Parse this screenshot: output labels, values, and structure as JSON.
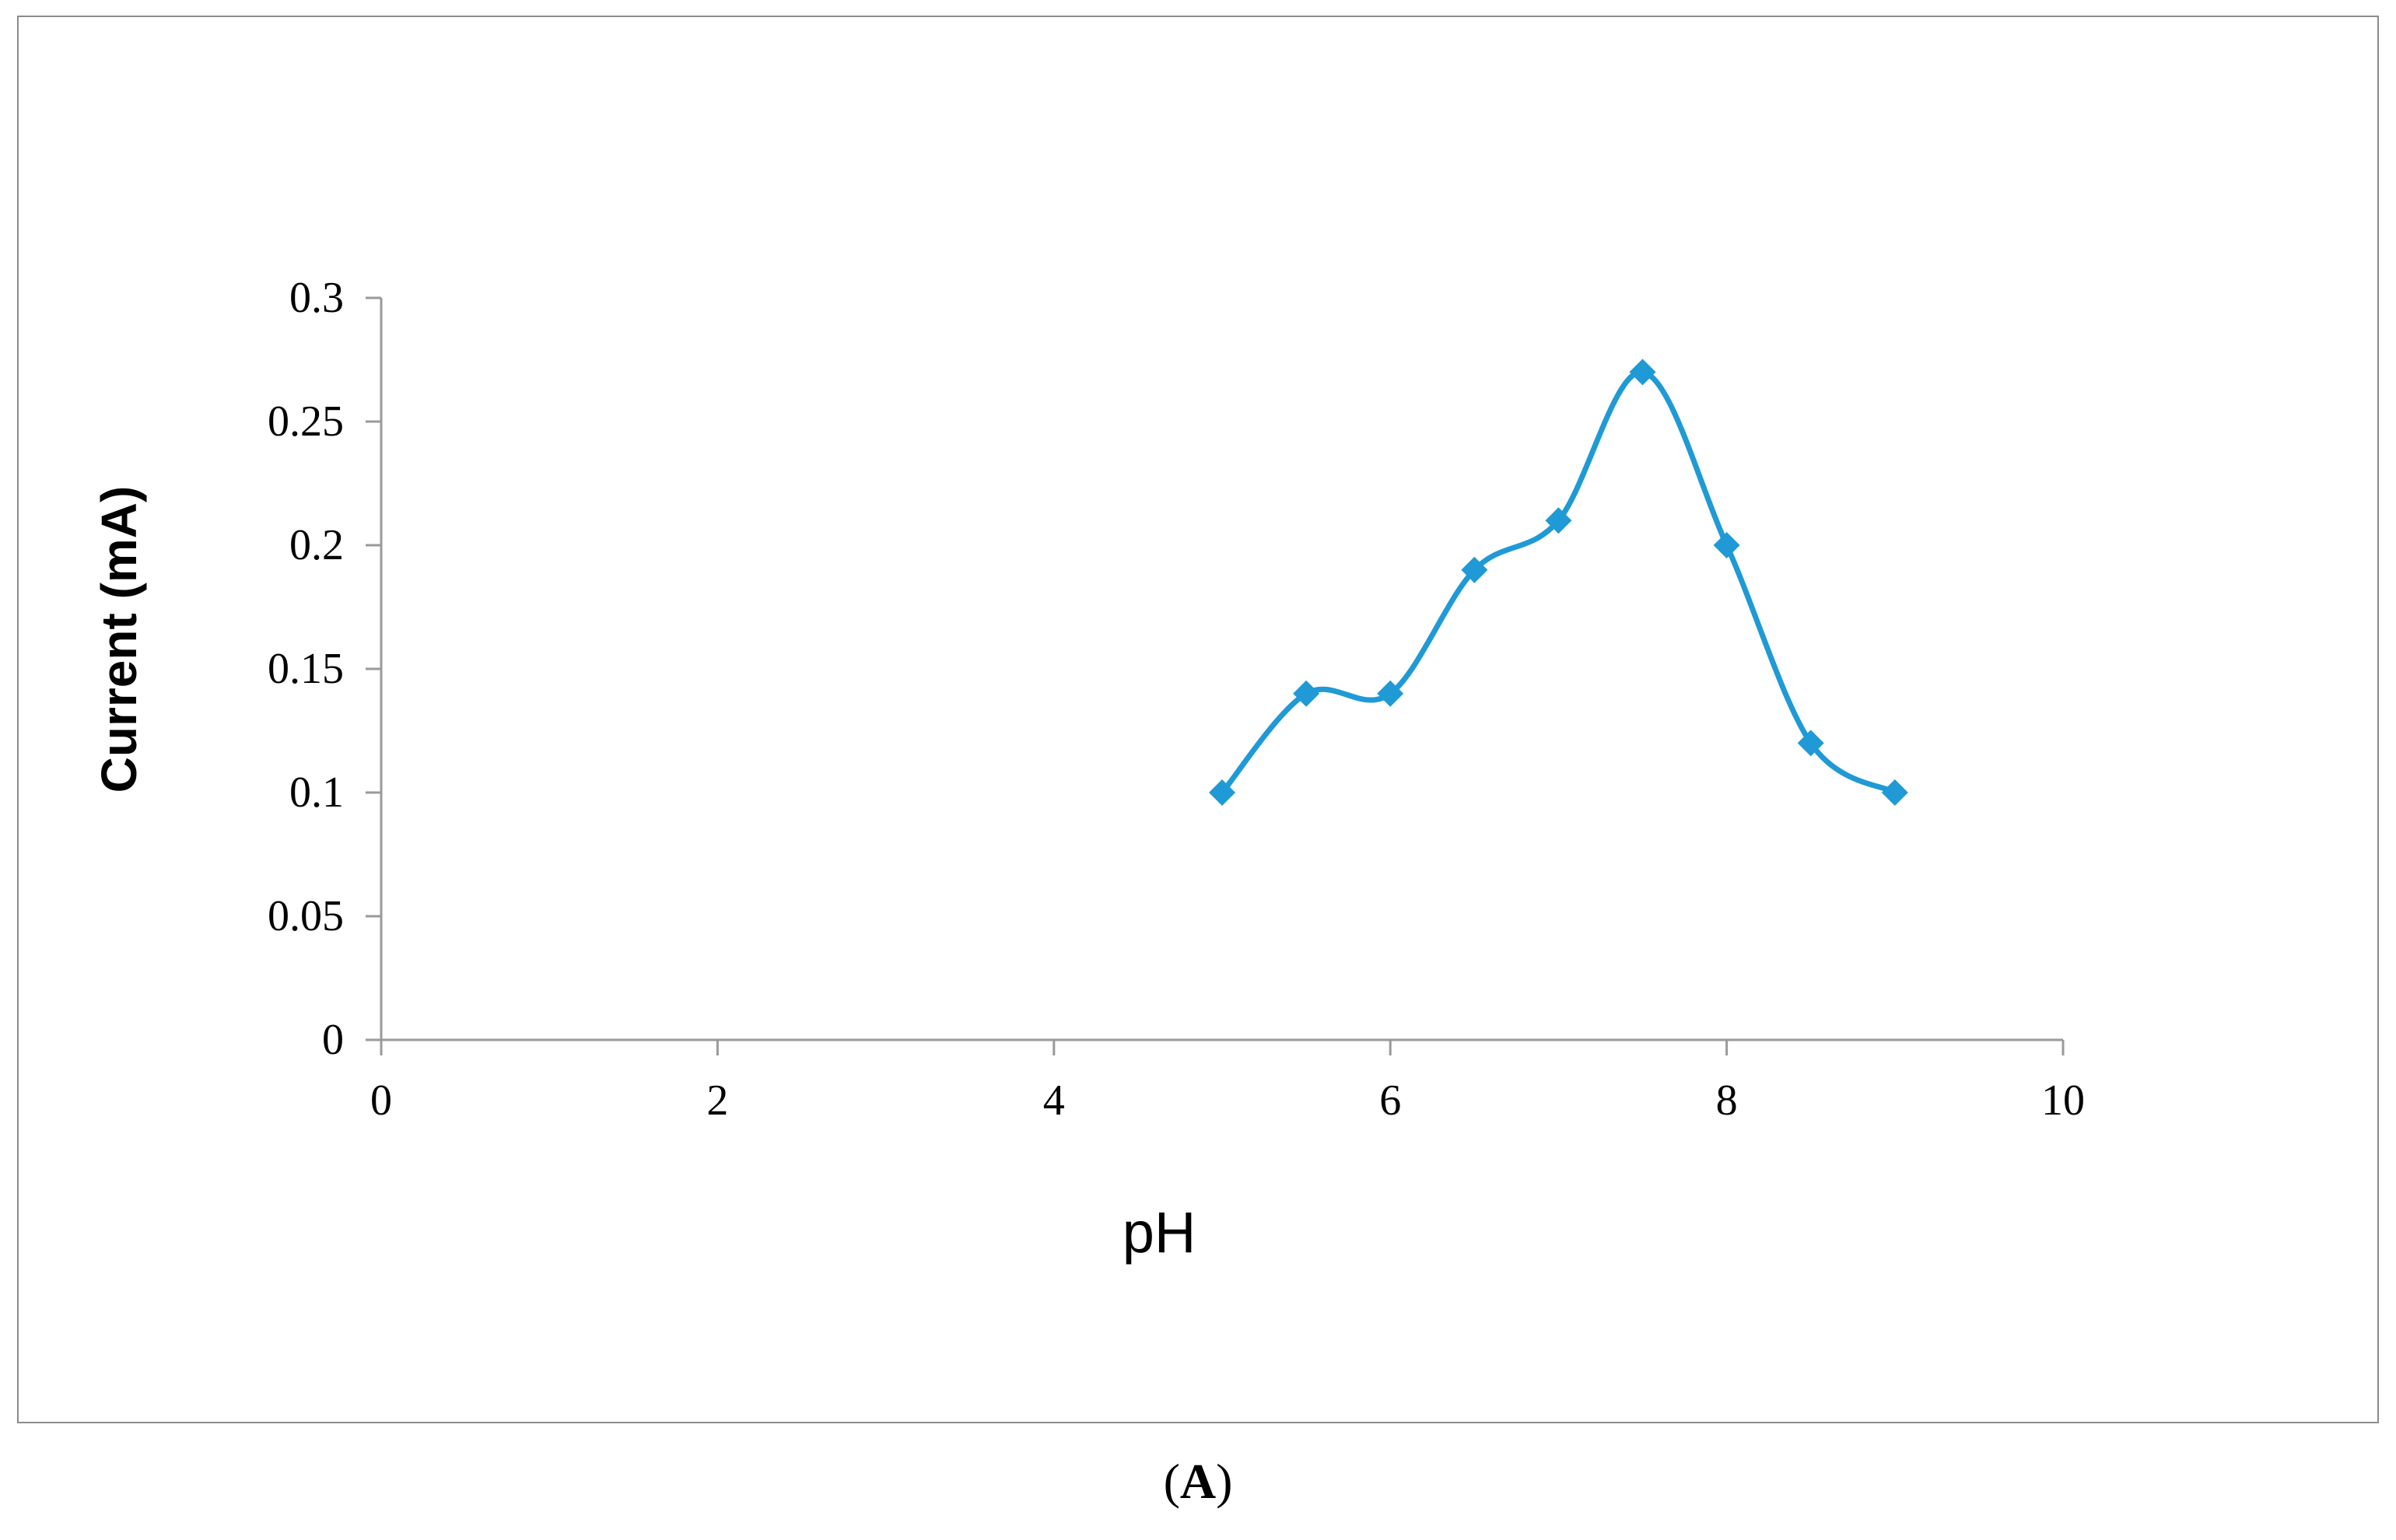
{
  "panel_label": {
    "open": "(",
    "letter": "A",
    "close": ")"
  },
  "colors": {
    "series": "#1f9ad6",
    "axis": "#9a9a9a",
    "text": "#000000"
  },
  "chart_data": {
    "type": "line",
    "smooth": true,
    "marker": "diamond",
    "title": "",
    "xlabel": "pH",
    "ylabel": "Current (mA)",
    "xlim": [
      0,
      10
    ],
    "ylim": [
      0,
      0.3
    ],
    "xticks": [
      0,
      2,
      4,
      6,
      8,
      10
    ],
    "yticks": [
      0,
      0.05,
      0.1,
      0.15,
      0.2,
      0.25,
      0.3
    ],
    "xtick_labels": [
      "0",
      "2",
      "4",
      "6",
      "8",
      "10"
    ],
    "ytick_labels": [
      "0",
      "0.05",
      "0.1",
      "0.15",
      "0.2",
      "0.25",
      "0.3"
    ],
    "grid": false,
    "legend": "none",
    "series": [
      {
        "x": [
          5,
          5.5,
          6,
          6.5,
          7,
          7.5,
          8,
          8.5,
          9
        ],
        "y": [
          0.1,
          0.14,
          0.14,
          0.19,
          0.21,
          0.27,
          0.2,
          0.12,
          0.1
        ]
      }
    ]
  }
}
